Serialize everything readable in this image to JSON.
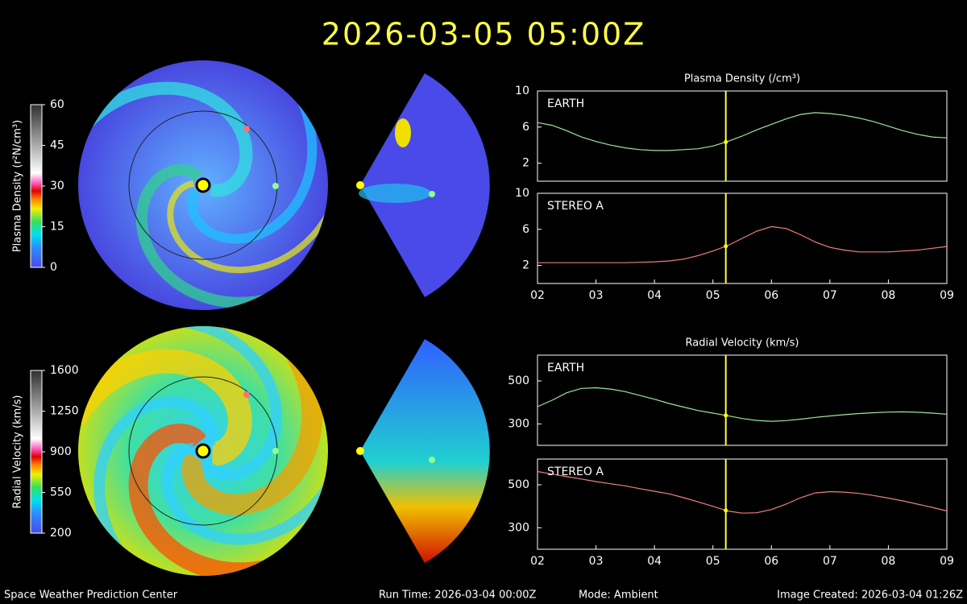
{
  "title": "2026-03-05 05:00Z",
  "footer": {
    "left": "Space Weather Prediction Center",
    "run": "Run Time: 2026-03-04 00:00Z",
    "mode": "Mode: Ambient",
    "created": "Image Created: 2026-03-04 01:26Z"
  },
  "colorbars": [
    {
      "label": "Plasma Density (r²N/cm³)",
      "lim": [
        0,
        60
      ],
      "ticks": [
        0,
        15,
        30,
        45,
        60
      ]
    },
    {
      "label": "Radial Velocity (km/s)",
      "lim": [
        200,
        1600
      ],
      "ticks": [
        200,
        550,
        900,
        1250,
        1600
      ]
    }
  ],
  "chart_data": [
    {
      "type": "line",
      "title": "Plasma Density (/cm³)",
      "x": [
        2,
        2.25,
        2.5,
        2.75,
        3,
        3.25,
        3.5,
        3.75,
        4,
        4.25,
        4.5,
        4.75,
        5,
        5.25,
        5.5,
        5.75,
        6,
        6.25,
        6.5,
        6.75,
        7,
        7.25,
        7.5,
        7.75,
        8,
        8.25,
        8.5,
        8.75,
        9
      ],
      "series": [
        {
          "name": "EARTH",
          "color": "#9ee69e",
          "values": [
            6.5,
            6.2,
            5.6,
            4.9,
            4.4,
            4.0,
            3.7,
            3.5,
            3.4,
            3.4,
            3.5,
            3.6,
            3.9,
            4.4,
            5.0,
            5.7,
            6.3,
            6.9,
            7.4,
            7.6,
            7.5,
            7.3,
            7.0,
            6.6,
            6.1,
            5.6,
            5.2,
            4.9,
            4.8
          ]
        }
      ],
      "xlim": [
        2,
        9
      ],
      "ylim": [
        0,
        10
      ],
      "yticks": [
        2,
        6,
        10
      ],
      "current_time": 5.22
    },
    {
      "type": "line",
      "x": [
        2,
        2.25,
        2.5,
        2.75,
        3,
        3.25,
        3.5,
        3.75,
        4,
        4.25,
        4.5,
        4.75,
        5,
        5.25,
        5.5,
        5.75,
        6,
        6.25,
        6.5,
        6.75,
        7,
        7.25,
        7.5,
        7.75,
        8,
        8.25,
        8.5,
        8.75,
        9
      ],
      "series": [
        {
          "name": "STEREO A",
          "color": "#f08080",
          "values": [
            2.3,
            2.3,
            2.3,
            2.3,
            2.3,
            2.3,
            2.3,
            2.35,
            2.4,
            2.5,
            2.7,
            3.1,
            3.6,
            4.2,
            5.0,
            5.8,
            6.3,
            6.1,
            5.4,
            4.6,
            4.0,
            3.7,
            3.5,
            3.5,
            3.5,
            3.6,
            3.7,
            3.9,
            4.1
          ]
        }
      ],
      "xlim": [
        2,
        9
      ],
      "xticks": [
        {
          "value": 2,
          "label": "02"
        },
        {
          "value": 3,
          "label": "03"
        },
        {
          "value": 4,
          "label": "04"
        },
        {
          "value": 5,
          "label": "05"
        },
        {
          "value": 6,
          "label": "06"
        },
        {
          "value": 7,
          "label": "07"
        },
        {
          "value": 8,
          "label": "08"
        },
        {
          "value": 9,
          "label": "09"
        }
      ],
      "ylim": [
        0,
        10
      ],
      "yticks": [
        2,
        6,
        10
      ],
      "current_time": 5.22
    },
    {
      "type": "line",
      "title": "Radial Velocity (km/s)",
      "x": [
        2,
        2.25,
        2.5,
        2.75,
        3,
        3.25,
        3.5,
        3.75,
        4,
        4.25,
        4.5,
        4.75,
        5,
        5.25,
        5.5,
        5.75,
        6,
        6.25,
        6.5,
        6.75,
        7,
        7.25,
        7.5,
        7.75,
        8,
        8.25,
        8.5,
        8.75,
        9
      ],
      "series": [
        {
          "name": "EARTH",
          "color": "#9ee69e",
          "values": [
            380,
            410,
            445,
            465,
            468,
            462,
            450,
            432,
            415,
            395,
            378,
            362,
            350,
            338,
            325,
            316,
            312,
            315,
            322,
            330,
            337,
            343,
            348,
            352,
            355,
            356,
            354,
            350,
            345
          ]
        }
      ],
      "xlim": [
        2,
        9
      ],
      "ylim": [
        200,
        620
      ],
      "yticks": [
        300,
        500
      ],
      "current_time": 5.22
    },
    {
      "type": "line",
      "x": [
        2,
        2.25,
        2.5,
        2.75,
        3,
        3.25,
        3.5,
        3.75,
        4,
        4.25,
        4.5,
        4.75,
        5,
        5.25,
        5.5,
        5.75,
        6,
        6.25,
        6.5,
        6.75,
        7,
        7.25,
        7.5,
        7.75,
        8,
        8.25,
        8.5,
        8.75,
        9
      ],
      "series": [
        {
          "name": "STEREO A",
          "color": "#f08080",
          "values": [
            562,
            550,
            538,
            527,
            515,
            505,
            495,
            482,
            470,
            458,
            440,
            420,
            400,
            378,
            368,
            370,
            385,
            410,
            440,
            462,
            468,
            466,
            460,
            450,
            438,
            425,
            410,
            395,
            378
          ]
        }
      ],
      "xlim": [
        2,
        9
      ],
      "xticks": [
        {
          "value": 2,
          "label": "02"
        },
        {
          "value": 3,
          "label": "03"
        },
        {
          "value": 4,
          "label": "04"
        },
        {
          "value": 5,
          "label": "05"
        },
        {
          "value": 6,
          "label": "06"
        },
        {
          "value": 7,
          "label": "07"
        },
        {
          "value": 8,
          "label": "08"
        },
        {
          "value": 9,
          "label": "09"
        }
      ],
      "ylim": [
        200,
        620
      ],
      "yticks": [
        300,
        500
      ],
      "current_time": 5.22
    }
  ]
}
